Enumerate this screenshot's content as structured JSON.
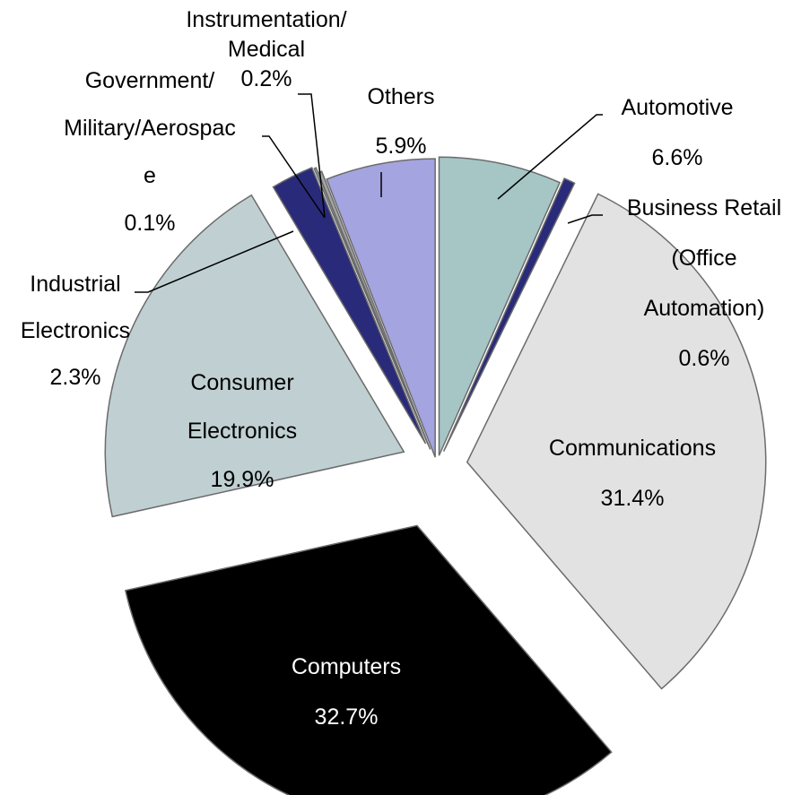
{
  "chart_data": {
    "type": "pie",
    "title": "",
    "slices": [
      {
        "label": [
          "Automotive",
          "6.6%"
        ],
        "value": 6.6,
        "color": "#a6c6c6",
        "exploded": true,
        "leader": true
      },
      {
        "label": [
          "Business Retail",
          "(Office",
          "Automation)",
          "0.6%"
        ],
        "value": 0.6,
        "color": "#2a2a7a",
        "exploded": true,
        "leader": true
      },
      {
        "label": [
          "Communications",
          "31.4%"
        ],
        "value": 31.4,
        "color": "#e2e2e2",
        "exploded": true,
        "leader": false
      },
      {
        "label": [
          "Computers",
          "32.7%"
        ],
        "value": 32.7,
        "color": "#000000",
        "exploded": true,
        "leader": false
      },
      {
        "label": [
          "Consumer",
          "Electronics",
          "19.9%"
        ],
        "value": 19.9,
        "color": "#c0d0d2",
        "exploded": true,
        "leader": false
      },
      {
        "label": [
          "Industrial",
          "Electronics",
          "2.3%"
        ],
        "value": 2.3,
        "color": "#2a2a7a",
        "exploded": true,
        "leader": true
      },
      {
        "label": [
          "Government/",
          "Military/Aerospac",
          "e",
          "0.1%"
        ],
        "value": 0.1,
        "color": "#a6c6c6",
        "exploded": true,
        "leader": true
      },
      {
        "label": [
          "Instrumentation/",
          "Medical",
          "0.2%"
        ],
        "value": 0.2,
        "color": "#a6a6a6",
        "exploded": true,
        "leader": true
      },
      {
        "label": [
          "Others",
          "5.9%"
        ],
        "value": 5.9,
        "color": "#a4a4e0",
        "exploded": true,
        "leader": true
      }
    ]
  }
}
